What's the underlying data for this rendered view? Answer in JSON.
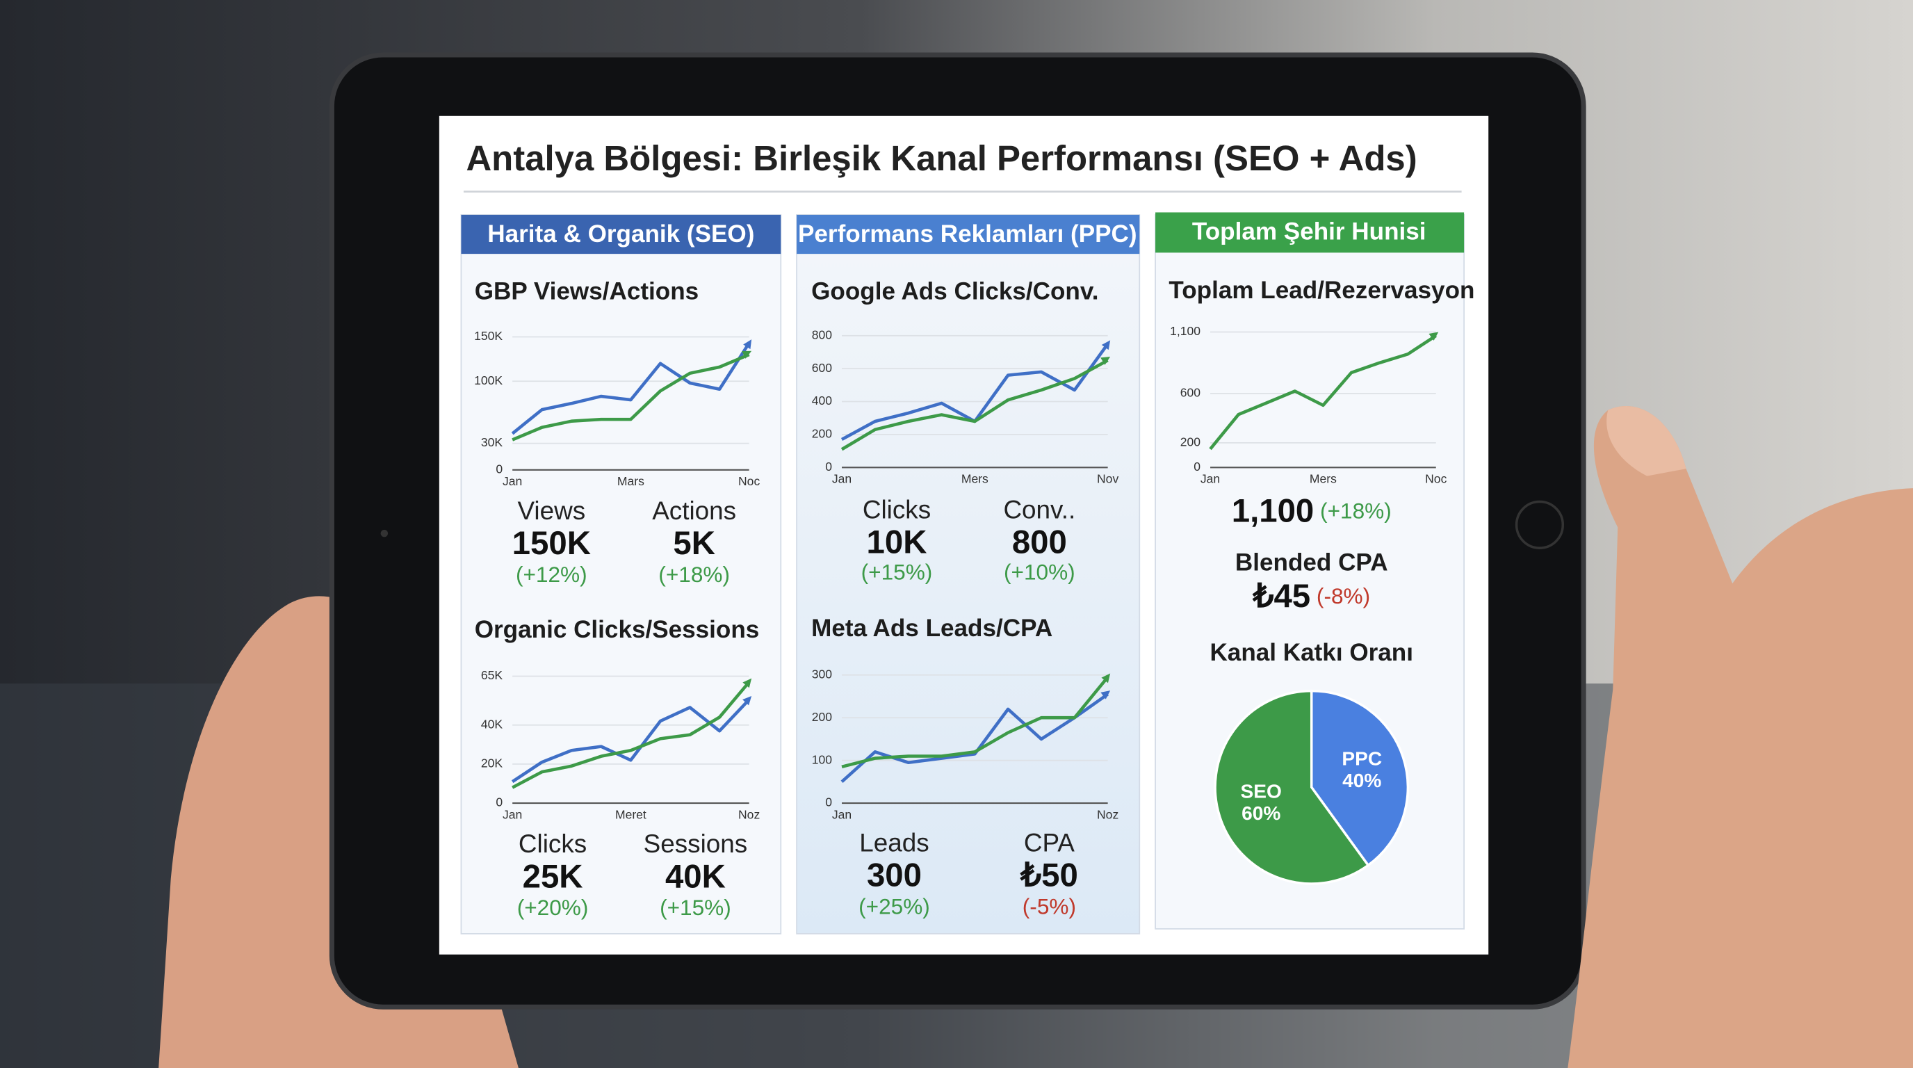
{
  "title": "Antalya Bölgesi: Birleşik Kanal Performansı (SEO + Ads)",
  "panels": [
    {
      "header": "Harita & Organik (SEO)",
      "charts": [
        {
          "type": "line",
          "title": "GBP Views/Actions",
          "categories": [
            "Jan",
            null,
            null,
            null,
            "Mars",
            null,
            null,
            null,
            "Noc"
          ],
          "ylim": [
            0,
            150000
          ],
          "yticks": [
            0,
            {
              "value": 30000,
              "label": "30K"
            },
            {
              "value": 100000,
              "label": "100K"
            },
            {
              "value": 150000,
              "label": "150K"
            }
          ],
          "series": [
            {
              "color": "#3f6fc6",
              "values": [
                41000,
                68000,
                75000,
                83000,
                79000,
                120000,
                98000,
                91000,
                143000
              ]
            },
            {
              "color": "#3d9a48",
              "values": [
                34000,
                48000,
                55000,
                57000,
                57000,
                89000,
                109000,
                116000,
                130000
              ]
            }
          ],
          "stats": [
            {
              "label": "Views",
              "value": "150K",
              "change": "(+12%)",
              "change_color": "#3d9a48"
            },
            {
              "label": "Actions",
              "value": "5K",
              "change": "(+18%)",
              "change_color": "#3d9a48"
            }
          ]
        },
        {
          "type": "line",
          "title": "Organic Clicks/Sessions",
          "categories": [
            "Jan",
            null,
            null,
            null,
            "Meret",
            null,
            null,
            null,
            "Noz"
          ],
          "ylim": [
            0,
            65000
          ],
          "yticks": [
            0,
            {
              "value": 20000,
              "label": "20K"
            },
            {
              "value": 40000,
              "label": "40K"
            },
            {
              "value": 65000,
              "label": "65K"
            }
          ],
          "series": [
            {
              "color": "#3f6fc6",
              "values": [
                11000,
                21000,
                27000,
                29000,
                22000,
                42000,
                49000,
                37000,
                53000
              ]
            },
            {
              "color": "#3d9a48",
              "values": [
                8000,
                16000,
                19000,
                24000,
                27000,
                33000,
                35000,
                44000,
                62000
              ]
            }
          ],
          "stats": [
            {
              "label": "Clicks",
              "value": "25K",
              "change": "(+20%)",
              "change_color": "#3d9a48"
            },
            {
              "label": "Sessions",
              "value": "40K",
              "change": "(+15%)",
              "change_color": "#3d9a48"
            }
          ]
        }
      ]
    },
    {
      "header": "Performans Reklamları (PPC)",
      "charts": [
        {
          "type": "line",
          "title": "Google Ads Clicks/Conv.",
          "categories": [
            "Jan",
            null,
            null,
            null,
            "Mers",
            null,
            null,
            null,
            "Nov"
          ],
          "ylim": [
            0,
            800
          ],
          "yticks": [
            0,
            200,
            400,
            600,
            800
          ],
          "series": [
            {
              "color": "#3f6fc6",
              "values": [
                170,
                280,
                330,
                390,
                280,
                560,
                580,
                470,
                750
              ]
            },
            {
              "color": "#3d9a48",
              "values": [
                110,
                230,
                280,
                320,
                280,
                410,
                470,
                540,
                650
              ]
            }
          ],
          "stats": [
            {
              "label": "Clicks",
              "value": "10K",
              "change": "(+15%)",
              "change_color": "#3d9a48"
            },
            {
              "label": "Conv..",
              "value": "800",
              "change": "(+10%)",
              "change_color": "#3d9a48"
            }
          ]
        },
        {
          "type": "line",
          "title": "Meta Ads Leads/CPA",
          "categories": [
            "Jan",
            null,
            null,
            null,
            null,
            null,
            null,
            null,
            "Noz"
          ],
          "ylim": [
            0,
            300
          ],
          "yticks": [
            0,
            100,
            200,
            300
          ],
          "series": [
            {
              "color": "#3f6fc6",
              "values": [
                50,
                120,
                95,
                105,
                115,
                220,
                150,
                200,
                255
              ]
            },
            {
              "color": "#3d9a48",
              "values": [
                85,
                105,
                110,
                110,
                120,
                165,
                200,
                200,
                295
              ]
            }
          ],
          "stats": [
            {
              "label": "Leads",
              "value": "300",
              "change": "(+25%)",
              "change_color": "#3d9a48"
            },
            {
              "label": "CPA",
              "value": "₺50",
              "change": "(-5%)",
              "change_color": "#c0392b"
            }
          ]
        }
      ]
    },
    {
      "header": "Toplam Şehir Hunisi",
      "charts": [
        {
          "type": "line",
          "title": "Toplam Lead/Rezervasyon",
          "categories": [
            "Jan",
            null,
            null,
            null,
            "Mers",
            null,
            null,
            null,
            "Noc"
          ],
          "ylim": [
            0,
            1100
          ],
          "yticks": [
            0,
            200,
            600,
            {
              "value": 1100,
              "label": "1,100"
            }
          ],
          "series": [
            {
              "color": "#3d9a48",
              "values": [
                150,
                430,
                525,
                620,
                505,
                770,
                850,
                920,
                1070
              ]
            }
          ],
          "stats": [
            {
              "value": "1,100",
              "change": "(+18%)",
              "change_color": "#3d9a48"
            },
            {
              "label": "Blended CPA",
              "value": "₺45",
              "change": "(-8%)",
              "change_color": "#c0392b"
            }
          ]
        },
        {
          "type": "pie",
          "title": "Kanal Katkı Oranı",
          "categories": [
            "PPC",
            "SEO"
          ],
          "values": [
            40,
            60
          ],
          "value_labels": [
            "40%",
            "60%"
          ],
          "colors": [
            "#4a80e0",
            "#3d9a48"
          ]
        }
      ]
    }
  ]
}
